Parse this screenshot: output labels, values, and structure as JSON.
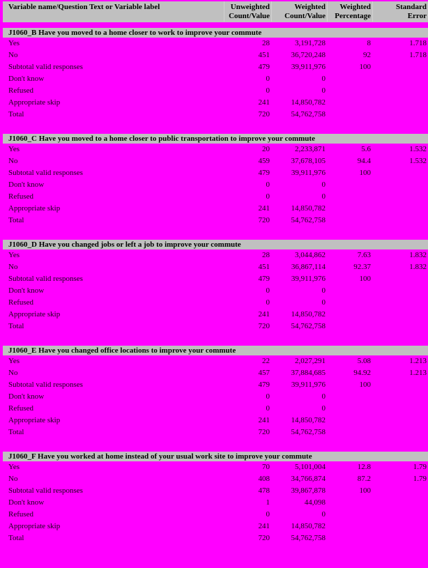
{
  "page": {
    "background": "#ff00ff",
    "band_color": "#c0c0c0"
  },
  "table_header": {
    "label_column": "Variable name/Question Text or Variable label",
    "columns": [
      {
        "line1": "Unweighted",
        "line2": "Count/Value"
      },
      {
        "line1": "Weighted",
        "line2": "Count/Value"
      },
      {
        "line1": "Weighted",
        "line2": "Percentage"
      },
      {
        "line1": "Standard",
        "line2": "Error"
      }
    ]
  },
  "sections": [
    {
      "title": "J1060_B Have you moved to a home closer to work to improve your commute",
      "rows": [
        {
          "label": "Yes",
          "unweighted": "28",
          "weighted": "3,191,728",
          "pct": "8",
          "se": "1.718"
        },
        {
          "label": "No",
          "unweighted": "451",
          "weighted": "36,720,248",
          "pct": "92",
          "se": "1.718"
        },
        {
          "label": "Subtotal valid responses",
          "unweighted": "479",
          "weighted": "39,911,976",
          "pct": "100",
          "se": ""
        },
        {
          "label": "Don't know",
          "unweighted": "0",
          "weighted": "0",
          "pct": "",
          "se": ""
        },
        {
          "label": "Refused",
          "unweighted": "0",
          "weighted": "0",
          "pct": "",
          "se": ""
        },
        {
          "label": "Appropriate skip",
          "unweighted": "241",
          "weighted": "14,850,782",
          "pct": "",
          "se": ""
        },
        {
          "label": "Total",
          "unweighted": "720",
          "weighted": "54,762,758",
          "pct": "",
          "se": ""
        }
      ]
    },
    {
      "title": "J1060_C Have you moved to a home closer to public transportation to improve your commute",
      "rows": [
        {
          "label": "Yes",
          "unweighted": "20",
          "weighted": "2,233,871",
          "pct": "5.6",
          "se": "1.532"
        },
        {
          "label": "No",
          "unweighted": "459",
          "weighted": "37,678,105",
          "pct": "94.4",
          "se": "1.532"
        },
        {
          "label": "Subtotal valid responses",
          "unweighted": "479",
          "weighted": "39,911,976",
          "pct": "100",
          "se": ""
        },
        {
          "label": "Don't know",
          "unweighted": "0",
          "weighted": "0",
          "pct": "",
          "se": ""
        },
        {
          "label": "Refused",
          "unweighted": "0",
          "weighted": "0",
          "pct": "",
          "se": ""
        },
        {
          "label": "Appropriate skip",
          "unweighted": "241",
          "weighted": "14,850,782",
          "pct": "",
          "se": ""
        },
        {
          "label": "Total",
          "unweighted": "720",
          "weighted": "54,762,758",
          "pct": "",
          "se": ""
        }
      ]
    },
    {
      "title": "J1060_D Have you changed jobs or left a job to improve your commute",
      "rows": [
        {
          "label": "Yes",
          "unweighted": "28",
          "weighted": "3,044,862",
          "pct": "7.63",
          "se": "1.832"
        },
        {
          "label": "No",
          "unweighted": "451",
          "weighted": "36,867,114",
          "pct": "92.37",
          "se": "1.832"
        },
        {
          "label": "Subtotal valid responses",
          "unweighted": "479",
          "weighted": "39,911,976",
          "pct": "100",
          "se": ""
        },
        {
          "label": "Don't know",
          "unweighted": "0",
          "weighted": "0",
          "pct": "",
          "se": ""
        },
        {
          "label": "Refused",
          "unweighted": "0",
          "weighted": "0",
          "pct": "",
          "se": ""
        },
        {
          "label": "Appropriate skip",
          "unweighted": "241",
          "weighted": "14,850,782",
          "pct": "",
          "se": ""
        },
        {
          "label": "Total",
          "unweighted": "720",
          "weighted": "54,762,758",
          "pct": "",
          "se": ""
        }
      ]
    },
    {
      "title": "J1060_E Have you changed office locations to improve your commute",
      "rows": [
        {
          "label": "Yes",
          "unweighted": "22",
          "weighted": "2,027,291",
          "pct": "5.08",
          "se": "1.213"
        },
        {
          "label": "No",
          "unweighted": "457",
          "weighted": "37,884,685",
          "pct": "94.92",
          "se": "1.213"
        },
        {
          "label": "Subtotal valid responses",
          "unweighted": "479",
          "weighted": "39,911,976",
          "pct": "100",
          "se": ""
        },
        {
          "label": "Don't know",
          "unweighted": "0",
          "weighted": "0",
          "pct": "",
          "se": ""
        },
        {
          "label": "Refused",
          "unweighted": "0",
          "weighted": "0",
          "pct": "",
          "se": ""
        },
        {
          "label": "Appropriate skip",
          "unweighted": "241",
          "weighted": "14,850,782",
          "pct": "",
          "se": ""
        },
        {
          "label": "Total",
          "unweighted": "720",
          "weighted": "54,762,758",
          "pct": "",
          "se": ""
        }
      ]
    },
    {
      "title": "J1060_F Have you worked at home instead of your usual work site to improve your commute",
      "rows": [
        {
          "label": "Yes",
          "unweighted": "70",
          "weighted": "5,101,004",
          "pct": "12.8",
          "se": "1.79"
        },
        {
          "label": "No",
          "unweighted": "408",
          "weighted": "34,766,874",
          "pct": "87.2",
          "se": "1.79"
        },
        {
          "label": "Subtotal valid responses",
          "unweighted": "478",
          "weighted": "39,867,878",
          "pct": "100",
          "se": ""
        },
        {
          "label": "Don't know",
          "unweighted": "1",
          "weighted": "44,098",
          "pct": "",
          "se": ""
        },
        {
          "label": "Refused",
          "unweighted": "0",
          "weighted": "0",
          "pct": "",
          "se": ""
        },
        {
          "label": "Appropriate skip",
          "unweighted": "241",
          "weighted": "14,850,782",
          "pct": "",
          "se": ""
        },
        {
          "label": "Total",
          "unweighted": "720",
          "weighted": "54,762,758",
          "pct": "",
          "se": ""
        }
      ]
    }
  ]
}
